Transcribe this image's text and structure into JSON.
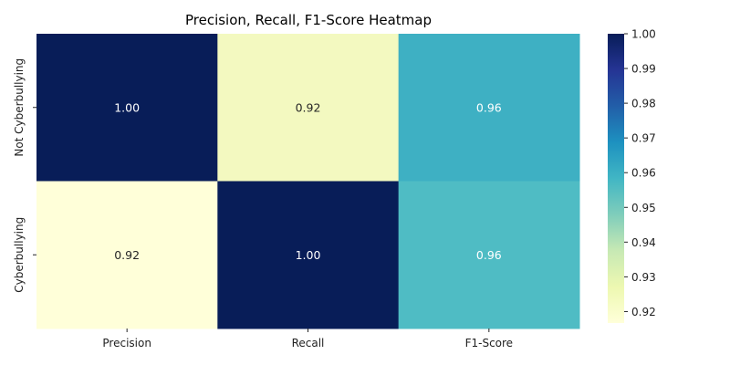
{
  "chart_data": {
    "type": "heatmap",
    "title": "Precision, Recall, F1-Score Heatmap",
    "columns": [
      "Precision",
      "Recall",
      "F1-Score"
    ],
    "rows": [
      "Not Cyberbullying",
      "Cyberbullying"
    ],
    "values": [
      [
        1.0,
        0.92,
        0.96
      ],
      [
        0.92,
        1.0,
        0.96
      ]
    ],
    "value_labels": [
      [
        "1.00",
        "0.92",
        "0.96"
      ],
      [
        "0.92",
        "1.00",
        "0.96"
      ]
    ],
    "colormap": "YlGnBu",
    "colorbar": {
      "min": 0.9167,
      "max": 1.0,
      "ticks": [
        "0.92",
        "0.93",
        "0.94",
        "0.95",
        "0.96",
        "0.97",
        "0.98",
        "0.99",
        "1.00"
      ]
    },
    "cell_colors": [
      [
        "#081d58",
        "#f3f9c0",
        "#3eb0c3"
      ],
      [
        "#ffffd9",
        "#081d58",
        "#4fbcc4"
      ]
    ],
    "colorbar_stops": [
      "#ffffd9",
      "#edf8b1",
      "#c7e9b4",
      "#7fcdbb",
      "#41b6c4",
      "#1d91c0",
      "#225ea8",
      "#253494",
      "#081d58"
    ]
  }
}
